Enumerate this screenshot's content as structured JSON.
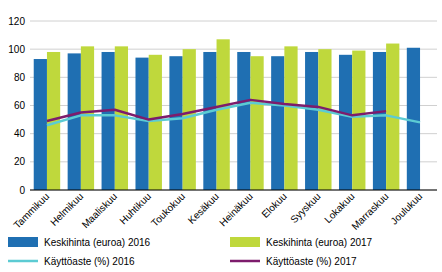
{
  "chart_data": {
    "type": "bar",
    "categories": [
      "Tammikuu",
      "Helmikuu",
      "Maaliskuu",
      "Huhtikuu",
      "Toukokuu",
      "Kesäkuu",
      "Heinäkuu",
      "Elokuu",
      "Syyskuu",
      "Lokakuu",
      "Marraskuu",
      "Joulukuu"
    ],
    "series": [
      {
        "name": "Keskihinta (euroa) 2016",
        "type": "bar",
        "color": "#1f6fb2",
        "values": [
          93,
          97,
          98,
          94,
          95,
          98,
          98,
          95,
          98,
          96,
          98,
          101
        ]
      },
      {
        "name": "Keskihinta (euroa) 2017",
        "type": "bar",
        "color": "#bfd83c",
        "values": [
          98,
          102,
          102,
          96,
          100,
          107,
          95,
          102,
          100,
          99,
          104,
          null
        ]
      },
      {
        "name": "Käyttöaste (%) 2016",
        "type": "line",
        "color": "#5ccbd3",
        "values": [
          46,
          53,
          53,
          49,
          51,
          57,
          62,
          60,
          57,
          52,
          53,
          48
        ]
      },
      {
        "name": "Käyttöaste (%) 2017",
        "type": "line",
        "color": "#7d1c6c",
        "values": [
          49,
          55,
          57,
          50,
          54,
          59,
          64,
          61,
          59,
          53,
          56,
          null
        ]
      }
    ],
    "ylim": [
      0,
      120
    ],
    "yticks": [
      0,
      20,
      40,
      60,
      80,
      100,
      120
    ],
    "grid": true,
    "legend": "bottom"
  }
}
